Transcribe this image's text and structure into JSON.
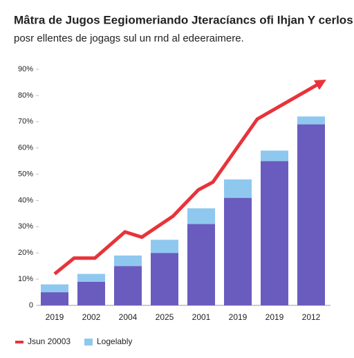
{
  "chart_data": {
    "type": "bar",
    "title": "Mâtra de Jugos Eegiomeriando Jteracíancs ofi Ihjan Y cerlos",
    "subtitle": "posr ellentes de jogags sul un rnd al edeeraimere.",
    "categories": [
      "2019",
      "2002",
      "2004",
      "2025",
      "2001",
      "2019",
      "2019",
      "2012"
    ],
    "series": [
      {
        "color": "#6a5bbf",
        "values": [
          5,
          9,
          15,
          20,
          31,
          41,
          55,
          69
        ]
      },
      {
        "name": "Logelably",
        "color": "#8fc8ee",
        "values": [
          3,
          3,
          4,
          5,
          6,
          7,
          4,
          3
        ]
      },
      {
        "name": "Jsun 20003",
        "type": "line",
        "color": "#e8333a",
        "x": [
          0,
          0.53,
          1.1,
          1.92,
          2.38,
          3.23,
          3.92,
          4.32,
          5.53,
          7.28
        ],
        "values": [
          12,
          18,
          18,
          28,
          26,
          34,
          44,
          47,
          71,
          85
        ]
      }
    ],
    "stacked": true,
    "ylim": [
      0,
      90
    ],
    "yticks": [
      0,
      {
        "value": 10,
        "label": "10%"
      },
      {
        "value": 20,
        "label": "20%"
      },
      {
        "value": 30,
        "label": "30%"
      },
      {
        "value": 40,
        "label": "40%"
      },
      {
        "value": 50,
        "label": "50%"
      },
      {
        "value": 60,
        "label": "60%"
      },
      {
        "value": 70,
        "label": "70%"
      },
      {
        "value": 80,
        "label": "80%"
      },
      {
        "value": 90,
        "label": "90%"
      }
    ]
  }
}
